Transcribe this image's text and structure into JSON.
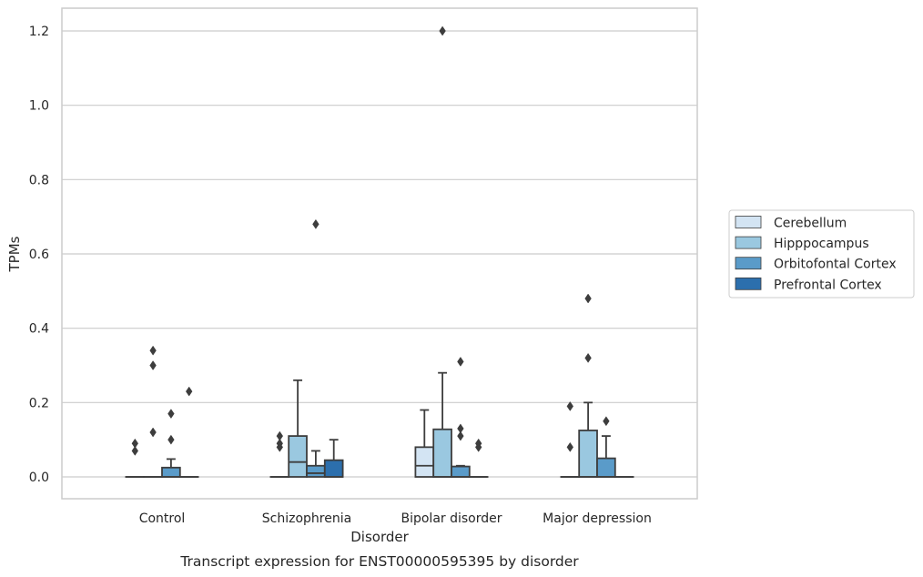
{
  "chart_data": {
    "type": "box",
    "caption": "Transcript expression for ENST00000595395 by disorder",
    "xlabel": "Disorder",
    "ylabel": "TPMs",
    "ylim": [
      -0.06,
      1.26
    ],
    "yticks": [
      "0.0",
      "0.2",
      "0.4",
      "0.6",
      "0.8",
      "1.0",
      "1.2"
    ],
    "ytick_values": [
      0.0,
      0.2,
      0.4,
      0.6,
      0.8,
      1.0,
      1.2
    ],
    "grid": "horizontal",
    "legend_position": "right",
    "categories": [
      "Control",
      "Schizophrenia",
      "Bipolar disorder",
      "Major depression"
    ],
    "series": [
      {
        "name": "Cerebellum",
        "color": "#d3e4f3",
        "boxes": [
          {
            "q1": 0.0,
            "median": 0.0,
            "q3": 0.0,
            "whisker_low": 0.0,
            "whisker_high": 0.0,
            "outliers": [
              0.07,
              0.09
            ]
          },
          {
            "q1": 0.0,
            "median": 0.0,
            "q3": 0.0,
            "whisker_low": 0.0,
            "whisker_high": 0.0,
            "outliers": [
              0.08,
              0.09,
              0.11
            ]
          },
          {
            "q1": 0.0,
            "median": 0.03,
            "q3": 0.08,
            "whisker_low": 0.0,
            "whisker_high": 0.18,
            "outliers": []
          },
          {
            "q1": 0.0,
            "median": 0.0,
            "q3": 0.0,
            "whisker_low": 0.0,
            "whisker_high": 0.0,
            "outliers": [
              0.08,
              0.19
            ]
          }
        ]
      },
      {
        "name": "Hipppocampus",
        "color": "#9ac8e0",
        "boxes": [
          {
            "q1": 0.0,
            "median": 0.0,
            "q3": 0.0,
            "whisker_low": 0.0,
            "whisker_high": 0.0,
            "outliers": [
              0.12,
              0.3,
              0.34
            ]
          },
          {
            "q1": 0.0,
            "median": 0.04,
            "q3": 0.11,
            "whisker_low": 0.0,
            "whisker_high": 0.26,
            "outliers": []
          },
          {
            "q1": 0.0,
            "median": 0.0,
            "q3": 0.128,
            "whisker_low": 0.0,
            "whisker_high": 0.28,
            "outliers": [
              1.2
            ]
          },
          {
            "q1": 0.0,
            "median": 0.0,
            "q3": 0.125,
            "whisker_low": 0.0,
            "whisker_high": 0.2,
            "outliers": [
              0.32,
              0.48
            ]
          }
        ]
      },
      {
        "name": "Orbitofontal Cortex",
        "color": "#5a9bc9",
        "boxes": [
          {
            "q1": 0.0,
            "median": 0.0,
            "q3": 0.025,
            "whisker_low": 0.0,
            "whisker_high": 0.048,
            "outliers": [
              0.1,
              0.17
            ]
          },
          {
            "q1": 0.0,
            "median": 0.01,
            "q3": 0.03,
            "whisker_low": 0.0,
            "whisker_high": 0.07,
            "outliers": [
              0.68
            ]
          },
          {
            "q1": 0.0,
            "median": 0.0,
            "q3": 0.028,
            "whisker_low": 0.0,
            "whisker_high": 0.03,
            "outliers": [
              0.11,
              0.13,
              0.31
            ]
          },
          {
            "q1": 0.0,
            "median": 0.0,
            "q3": 0.05,
            "whisker_low": 0.0,
            "whisker_high": 0.11,
            "outliers": [
              0.15
            ]
          }
        ]
      },
      {
        "name": "Prefrontal Cortex",
        "color": "#2c6fad",
        "boxes": [
          {
            "q1": 0.0,
            "median": 0.0,
            "q3": 0.0,
            "whisker_low": 0.0,
            "whisker_high": 0.0,
            "outliers": [
              0.23
            ]
          },
          {
            "q1": 0.0,
            "median": 0.0,
            "q3": 0.045,
            "whisker_low": 0.0,
            "whisker_high": 0.1,
            "outliers": []
          },
          {
            "q1": 0.0,
            "median": 0.0,
            "q3": 0.0,
            "whisker_low": 0.0,
            "whisker_high": 0.0,
            "outliers": [
              0.08,
              0.09
            ]
          },
          {
            "q1": 0.0,
            "median": 0.0,
            "q3": 0.0,
            "whisker_low": 0.0,
            "whisker_high": 0.0,
            "outliers": []
          }
        ]
      }
    ]
  }
}
